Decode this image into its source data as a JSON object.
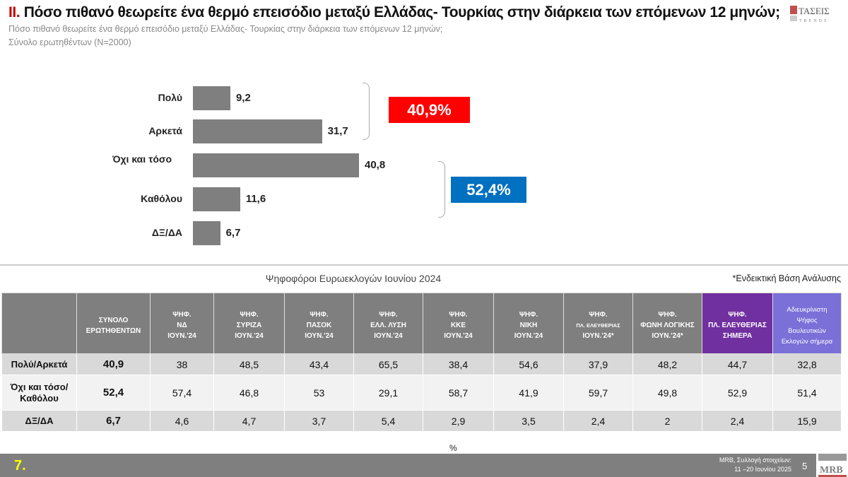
{
  "header": {
    "title_num": "II.",
    "title": " Πόσο πιθανό θεωρείτε ένα θερμό επεισόδιο μεταξύ Ελλάδας- Τουρκίας στην διάρκεια των επόμενων 12 μηνών;",
    "subtitle": "Πόσο πιθανό θεωρείτε ένα θερμό επεισόδιο μεταξύ Ελλάδας- Τουρκίας στην διάρκεια των επόμενων 12 μηνών;",
    "base": "Σύνολο ερωτηθέντων (N=2000)",
    "logo": "ΤΑΣΕΙΣ TRENDS"
  },
  "chart_data": {
    "type": "bar",
    "orientation": "horizontal",
    "categories": [
      "Πολύ",
      "Αρκετά",
      "Όχι και τόσο",
      "Καθόλου",
      "ΔΞ/ΔΑ"
    ],
    "values": [
      9.2,
      31.7,
      40.8,
      11.6,
      6.7
    ],
    "value_labels": [
      "9,2",
      "31,7",
      "40,8",
      "11,6",
      "6,7"
    ],
    "bar_color": "#7f7f7f",
    "groups": [
      {
        "label": "40,9%",
        "color": "#ff0000"
      },
      {
        "label": "52,4%",
        "color": "#0070c0"
      }
    ],
    "xlim": [
      0,
      45
    ]
  },
  "table": {
    "title": "Ψηφοφόροι Ευρωεκλογών Ιουνίου 2024",
    "note": "*Ενδεικτική Βάση Ανάλυσης",
    "headers": [
      [
        "",
        ""
      ],
      [
        "ΣΥΝΟΛΟ",
        "ΕΡΩΤΗΘΕΝΤΩΝ",
        ""
      ],
      [
        "ΨΗΦ.",
        "ΝΔ",
        "ΙΟΥΝ.'24"
      ],
      [
        "ΨΗΦ.",
        "ΣΥΡΙΖΑ",
        "ΙΟΥΝ.'24"
      ],
      [
        "ΨΗΦ.",
        "ΠΑΣΟΚ",
        "ΙΟΥΝ.'24"
      ],
      [
        "ΨΗΦ.",
        "ΕΛΛ. ΛΥΣΗ",
        "ΙΟΥΝ.'24"
      ],
      [
        "ΨΗΦ.",
        "ΚΚΕ",
        "ΙΟΥΝ.'24"
      ],
      [
        "ΨΗΦ.",
        "ΝΙΚΗ",
        "ΙΟΥΝ.'24"
      ],
      [
        "ΨΗΦ.",
        "ΠΛ. ΕΛΕΥΘΕΡΙΑΣ",
        "ΙΟΥΝ.'24*"
      ],
      [
        "ΨΗΦ.",
        "ΦΩΝΗ ΛΟΓΙΚΗΣ",
        "ΙΟΥΝ.'24*"
      ],
      [
        "ΨΗΦ.",
        "ΠΛ. ΕΛΕΥΘΕΡΙΑΣ",
        "ΣΗΜΕΡΑ"
      ],
      [
        "Αδιευκρίνιστη",
        "Ψήφος",
        "Βουλευτικών",
        "Εκλογών σήμερα"
      ]
    ],
    "rows": [
      [
        "Πολύ/Αρκετά",
        "40,9",
        "38",
        "48,5",
        "43,4",
        "65,5",
        "38,4",
        "54,6",
        "37,9",
        "48,2",
        "44,7",
        "32,8"
      ],
      [
        "Όχι και τόσο/Καθόλου",
        "52,4",
        "57,4",
        "46,8",
        "53",
        "29,1",
        "58,7",
        "41,9",
        "59,7",
        "49,8",
        "52,9",
        "51,4"
      ],
      [
        "ΔΞ/ΔΑ",
        "6,7",
        "4,6",
        "4,7",
        "3,7",
        "5,4",
        "2,9",
        "3,5",
        "2,4",
        "2",
        "2,4",
        "15,9"
      ]
    ],
    "highlight_colors": [
      "#7030a0",
      "#7b6fd8"
    ]
  },
  "unit": "%",
  "footer": {
    "page_label": "7.",
    "source_line1": "MRB, Συλλογή στοιχείων:",
    "source_line2": "11 –20 Ιουνίου 2025",
    "slide_number": "5",
    "logo": "MRB"
  }
}
